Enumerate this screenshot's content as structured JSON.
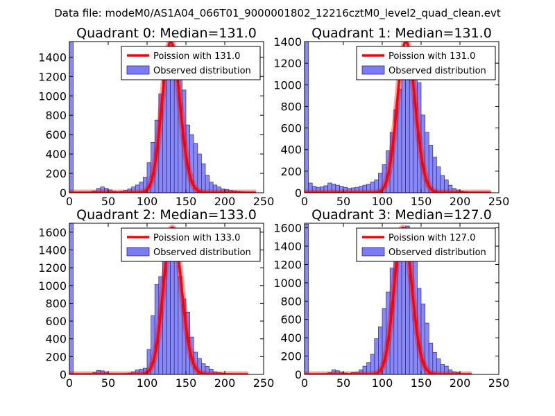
{
  "figure_title": "Data file: modeM0/AS1A04_066T01_9000001802_12216cztM0_level2_quad_clean.evt",
  "colors": {
    "bars": "#7b7bf6",
    "bar_edge": "#2a2a7a",
    "fit": "#ff0000"
  },
  "chart_data": [
    {
      "type": "bar",
      "title": "Quadrant 0: Median=131.0",
      "median": 131.0,
      "legend": {
        "fit": "Poission with 131.0",
        "hist": "Observed distribution",
        "position": "top-right"
      },
      "xlim": [
        0,
        250
      ],
      "ylim": [
        0,
        1560
      ],
      "xticks": [
        0,
        50,
        100,
        150,
        200,
        250
      ],
      "yticks": [
        0,
        200,
        400,
        600,
        800,
        1000,
        1200,
        1400
      ],
      "bin_width": 5,
      "bins": [
        0,
        5,
        10,
        15,
        20,
        25,
        30,
        35,
        40,
        45,
        50,
        55,
        60,
        65,
        70,
        75,
        80,
        85,
        90,
        95,
        100,
        105,
        110,
        115,
        120,
        125,
        130,
        135,
        140,
        145,
        150,
        155,
        160,
        165,
        170,
        175,
        180,
        185,
        190,
        195,
        200,
        205,
        210,
        215,
        220,
        225,
        230
      ],
      "counts": [
        1560,
        0,
        0,
        0,
        5,
        10,
        20,
        45,
        60,
        45,
        30,
        15,
        10,
        15,
        25,
        40,
        60,
        80,
        110,
        160,
        310,
        520,
        750,
        1020,
        1200,
        1430,
        1520,
        1380,
        1250,
        1060,
        700,
        600,
        510,
        400,
        300,
        180,
        110,
        80,
        60,
        40,
        35,
        25,
        20,
        15,
        10,
        5,
        0
      ],
      "fit_peak": 1560,
      "fit_range": [
        0,
        240
      ]
    },
    {
      "type": "bar",
      "title": "Quadrant 1: Median=131.0",
      "median": 131.0,
      "legend": {
        "fit": "Poission with 131.0",
        "hist": "Observed distribution",
        "position": "top-right"
      },
      "xlim": [
        0,
        250
      ],
      "ylim": [
        0,
        1400
      ],
      "xticks": [
        0,
        50,
        100,
        150,
        200,
        250
      ],
      "yticks": [
        0,
        200,
        400,
        600,
        800,
        1000,
        1200,
        1400
      ],
      "bin_width": 5,
      "bins": [
        0,
        5,
        10,
        15,
        20,
        25,
        30,
        35,
        40,
        45,
        50,
        55,
        60,
        65,
        70,
        75,
        80,
        85,
        90,
        95,
        100,
        105,
        110,
        115,
        120,
        125,
        130,
        135,
        140,
        145,
        150,
        155,
        160,
        165,
        170,
        175,
        180,
        185,
        190,
        195,
        200,
        205,
        210,
        215,
        220,
        225,
        230
      ],
      "counts": [
        1400,
        90,
        60,
        50,
        55,
        65,
        90,
        80,
        70,
        60,
        50,
        40,
        45,
        50,
        60,
        70,
        80,
        100,
        120,
        180,
        260,
        390,
        560,
        770,
        960,
        1180,
        1320,
        1240,
        1160,
        1020,
        720,
        560,
        440,
        330,
        240,
        160,
        120,
        70,
        40,
        25,
        15,
        10,
        5,
        5,
        0,
        0,
        0
      ],
      "fit_peak": 1400,
      "fit_range": [
        0,
        240
      ]
    },
    {
      "type": "bar",
      "title": "Quadrant 2: Median=133.0",
      "median": 133.0,
      "legend": {
        "fit": "Poission with 133.0",
        "hist": "Observed distribution",
        "position": "top-right"
      },
      "xlim": [
        0,
        250
      ],
      "ylim": [
        0,
        1700
      ],
      "xticks": [
        0,
        50,
        100,
        150,
        200,
        250
      ],
      "yticks": [
        0,
        200,
        400,
        600,
        800,
        1000,
        1200,
        1400,
        1600
      ],
      "bin_width": 5,
      "bins": [
        0,
        5,
        10,
        15,
        20,
        25,
        30,
        35,
        40,
        45,
        50,
        55,
        60,
        65,
        70,
        75,
        80,
        85,
        90,
        95,
        100,
        105,
        110,
        115,
        120,
        125,
        130,
        135,
        140,
        145,
        150,
        155,
        160,
        165,
        170,
        175,
        180,
        185,
        190,
        195,
        200,
        205,
        210,
        215,
        220,
        225,
        230
      ],
      "counts": [
        1700,
        0,
        0,
        0,
        0,
        10,
        20,
        45,
        40,
        25,
        10,
        5,
        5,
        5,
        10,
        15,
        30,
        50,
        60,
        70,
        280,
        660,
        1010,
        1100,
        1340,
        1620,
        1650,
        1350,
        1100,
        850,
        700,
        420,
        250,
        180,
        120,
        90,
        60,
        30,
        20,
        15,
        10,
        5,
        0,
        0,
        0,
        0,
        0
      ],
      "fit_peak": 1650,
      "fit_range": [
        0,
        230
      ]
    },
    {
      "type": "bar",
      "title": "Quadrant 3: Median=127.0",
      "median": 127.0,
      "legend": {
        "fit": "Poission with 127.0",
        "hist": "Observed distribution",
        "position": "top-right"
      },
      "xlim": [
        0,
        250
      ],
      "ylim": [
        0,
        1650
      ],
      "xticks": [
        0,
        50,
        100,
        150,
        200,
        250
      ],
      "yticks": [
        0,
        200,
        400,
        600,
        800,
        1000,
        1200,
        1400,
        1600
      ],
      "bin_width": 5,
      "bins": [
        0,
        5,
        10,
        15,
        20,
        25,
        30,
        35,
        40,
        45,
        50,
        55,
        60,
        65,
        70,
        75,
        80,
        85,
        90,
        95,
        100,
        105,
        110,
        115,
        120,
        125,
        130,
        135,
        140,
        145,
        150,
        155,
        160,
        165,
        170,
        175,
        180,
        185,
        190,
        195,
        200,
        205,
        210,
        215,
        220,
        225,
        230
      ],
      "counts": [
        1640,
        0,
        0,
        0,
        0,
        10,
        20,
        50,
        40,
        25,
        15,
        10,
        20,
        25,
        50,
        90,
        130,
        220,
        390,
        520,
        720,
        900,
        1160,
        1290,
        1480,
        1600,
        1620,
        1500,
        1280,
        940,
        770,
        560,
        340,
        240,
        170,
        110,
        90,
        50,
        30,
        20,
        10,
        5,
        0,
        0,
        0,
        0,
        0
      ],
      "fit_peak": 1600,
      "fit_range": [
        0,
        215
      ]
    }
  ]
}
